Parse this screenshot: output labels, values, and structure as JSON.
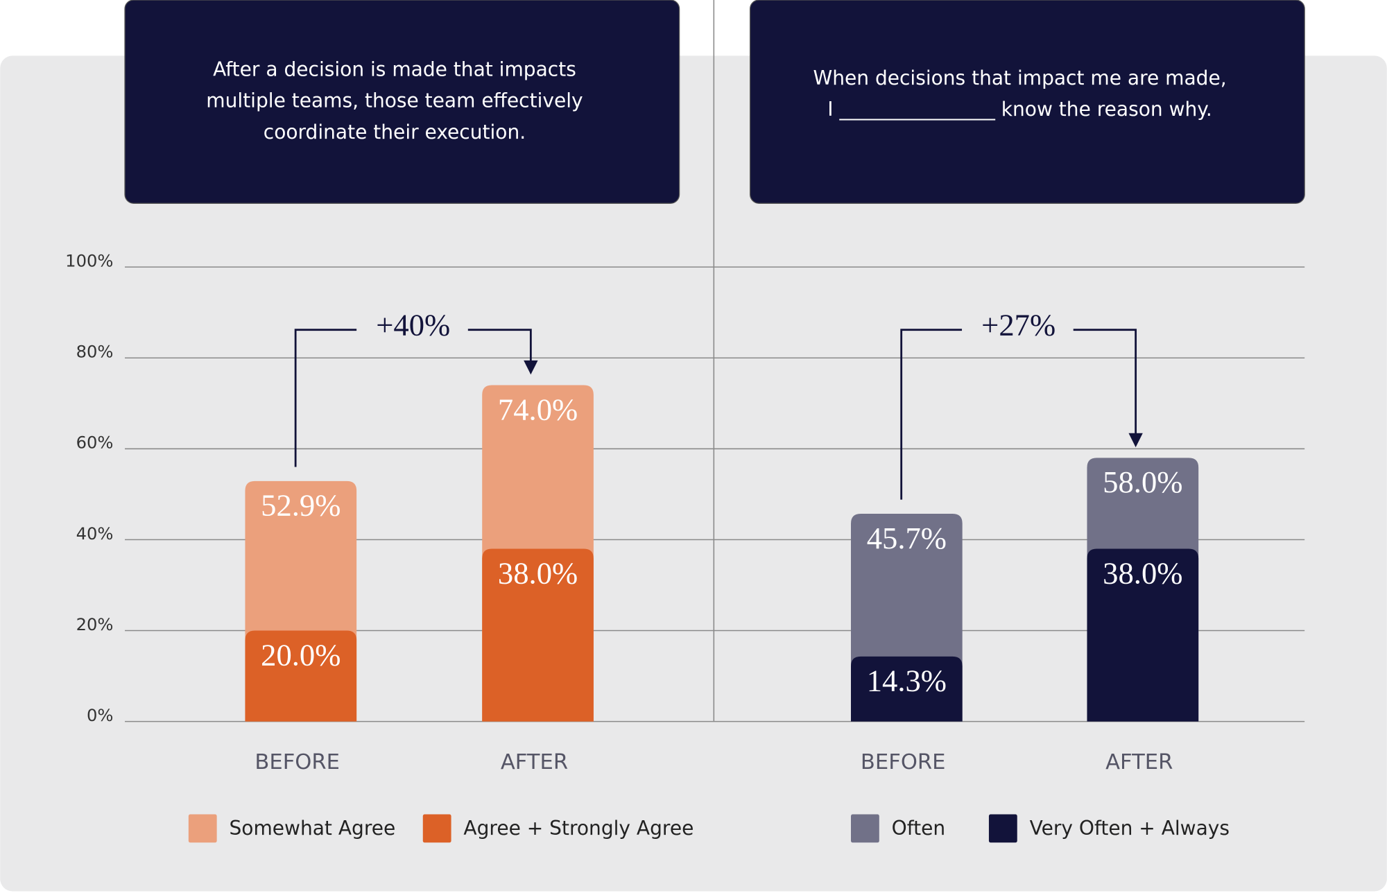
{
  "chart_data": [
    {
      "type": "bar",
      "title": [
        "After a decision is made that impacts",
        "multiple teams, those team effectively",
        "coordinate their execution."
      ],
      "categories": [
        "BEFORE",
        "AFTER"
      ],
      "series": [
        {
          "name": "Somewhat Agree",
          "color": "#eba07c",
          "values": [
            52.9,
            74.0
          ],
          "value_labels": [
            "52.9%",
            "74.0%"
          ]
        },
        {
          "name": "Agree + Strongly Agree",
          "color": "#dc6127",
          "values": [
            20.0,
            38.0
          ],
          "value_labels": [
            "20.0%",
            "38.0%"
          ]
        }
      ],
      "annotation": "+40%",
      "ylim": [
        0,
        100
      ],
      "yticks": [
        {
          "value": 0,
          "label": "0%"
        },
        {
          "value": 20,
          "label": "20%"
        },
        {
          "value": 40,
          "label": "40%"
        },
        {
          "value": 60,
          "label": "60%"
        },
        {
          "value": 80,
          "label": "80%"
        },
        {
          "value": 100,
          "label": "100%"
        }
      ],
      "grid": true
    },
    {
      "type": "bar",
      "title": [
        "When decisions that impact me are made,",
        "I ________________ know the reason why."
      ],
      "categories": [
        "BEFORE",
        "AFTER"
      ],
      "series": [
        {
          "name": "Often",
          "color": "#717188",
          "values": [
            45.7,
            58.0
          ],
          "value_labels": [
            "45.7%",
            "58.0%"
          ]
        },
        {
          "name": "Very Often + Always",
          "color": "#12133a",
          "values": [
            14.3,
            38.0
          ],
          "value_labels": [
            "14.3%",
            "38.0%"
          ]
        }
      ],
      "annotation": "+27%",
      "ylim": [
        0,
        100
      ]
    }
  ]
}
